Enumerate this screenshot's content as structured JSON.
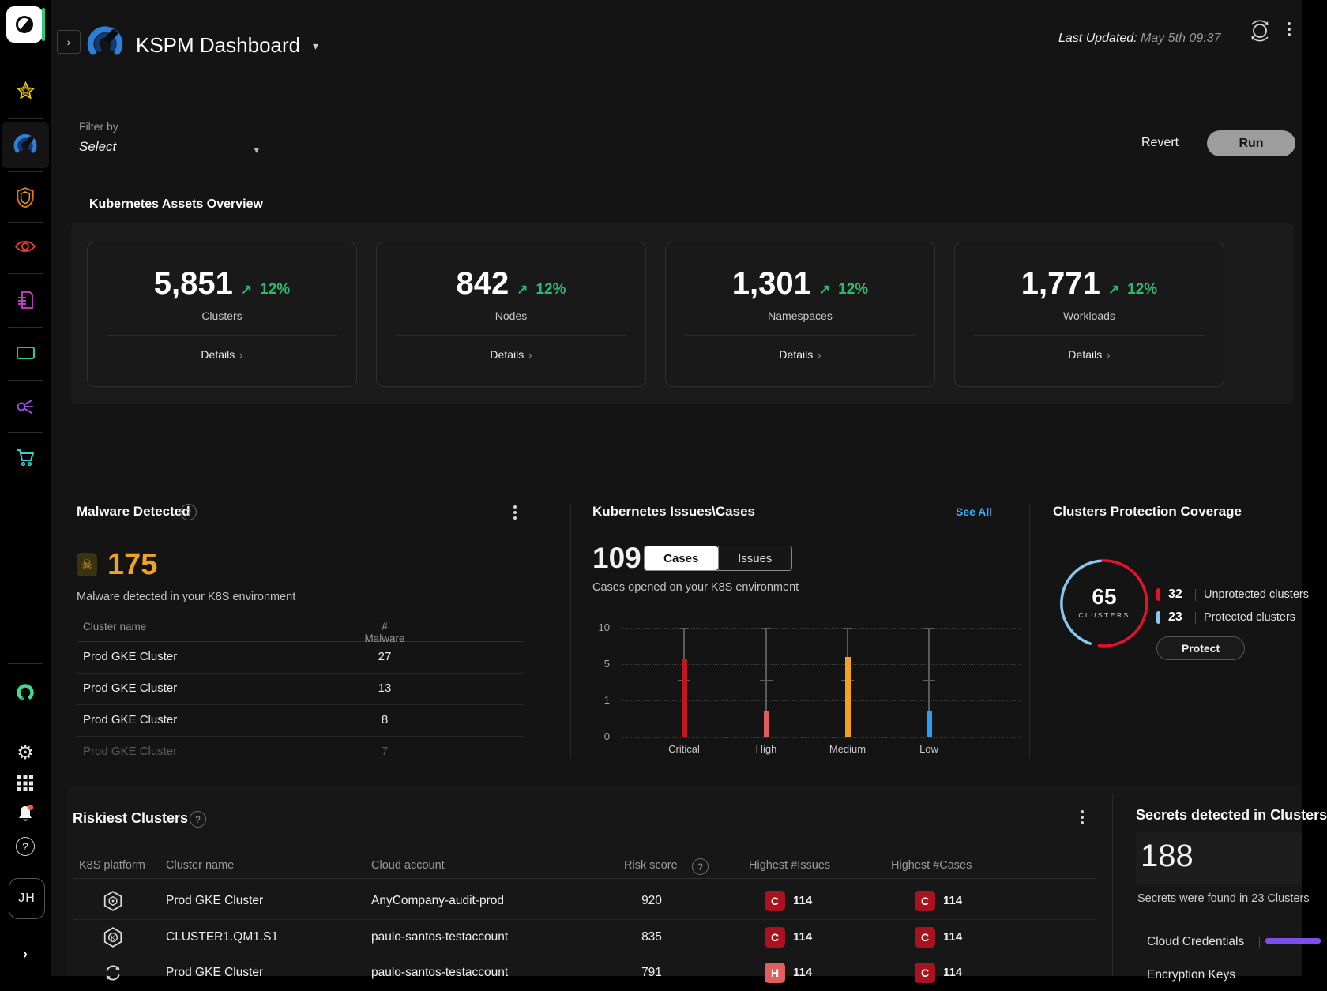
{
  "header": {
    "title": "KSPM Dashboard",
    "last_updated_label": "Last Updated:",
    "last_updated_value": "May 5th 09:37"
  },
  "sidebar": {
    "avatar_initials": "JH",
    "icons": [
      "logo",
      "favorites-star",
      "kspm-gauge",
      "shield",
      "eye",
      "report-document",
      "monitor",
      "share-network",
      "cart",
      "ring-logo",
      "settings-gear",
      "apps-grid",
      "notifications-bell",
      "help"
    ]
  },
  "filter": {
    "label": "Filter by",
    "value": "Select",
    "revert_label": "Revert",
    "run_label": "Run"
  },
  "assets": {
    "title": "Kubernetes Assets Overview",
    "details_label": "Details",
    "cards": [
      {
        "value": "5,851",
        "delta": "12%",
        "label": "Clusters"
      },
      {
        "value": "842",
        "delta": "12%",
        "label": "Nodes"
      },
      {
        "value": "1,301",
        "delta": "12%",
        "label": "Namespaces"
      },
      {
        "value": "1,771",
        "delta": "12%",
        "label": "Workloads"
      }
    ],
    "delta_color": "#2eb86f"
  },
  "malware": {
    "title": "Malware Detected",
    "count": "175",
    "count_color": "#f0a226",
    "subtitle": "Malware detected in your K8S environment",
    "columns": [
      "Cluster name",
      "# Malware"
    ],
    "rows": [
      {
        "name": "Prod GKE Cluster",
        "count": "27"
      },
      {
        "name": "Prod GKE Cluster",
        "count": "13"
      },
      {
        "name": "Prod GKE Cluster",
        "count": "8"
      },
      {
        "name": "Prod GKE Cluster",
        "count": "7"
      }
    ]
  },
  "issues_cases": {
    "title": "Kubernetes Issues\\Cases",
    "see_all": "See All",
    "count": "109",
    "tabs": [
      "Cases",
      "Issues"
    ],
    "active_tab": "Cases",
    "subtitle": "Cases opened on your K8S environment",
    "chart_data": {
      "type": "bar",
      "categories": [
        "Critical",
        "High",
        "Medium",
        "Low"
      ],
      "values": [
        5.8,
        0.7,
        6.0,
        0.7
      ],
      "colors": [
        "#c01722",
        "#e25d5d",
        "#f2a124",
        "#2d9cf4"
      ],
      "yticks": [
        "10",
        "5",
        "1",
        "0"
      ],
      "ylim": [
        0,
        10
      ],
      "grid": "dotted"
    }
  },
  "protection": {
    "title": "Clusters Protection Coverage",
    "total": "65",
    "total_label": "CLUSTERS",
    "button_label": "Protect",
    "legend": [
      {
        "value": "32",
        "label": "Unprotected clusters",
        "color": "#e8112d"
      },
      {
        "value": "23",
        "label": "Protected clusters",
        "color": "#85c8f0"
      }
    ],
    "chart_data": {
      "type": "donut",
      "segments": [
        {
          "label": "Unprotected clusters",
          "value": 32,
          "color": "#e8112d"
        },
        {
          "label": "Protected clusters",
          "value": 23,
          "color": "#85c8f0"
        }
      ]
    }
  },
  "riskiest": {
    "title": "Riskiest Clusters",
    "columns": [
      "K8S platform",
      "Cluster name",
      "Cloud account",
      "Risk score",
      "Highest #Issues",
      "Highest #Cases"
    ],
    "sev_colors": {
      "C": "#a9121f",
      "H": "#e05f5f"
    },
    "rows": [
      {
        "platform": "gke-hexagon",
        "name": "Prod GKE Cluster",
        "account": "AnyCompany-audit-prod",
        "score": "920",
        "issues_sev": "C",
        "issues_count": "114",
        "cases_sev": "C",
        "cases_count": "114"
      },
      {
        "platform": "kubernetes-hexagon",
        "name": "CLUSTER1.QM1.S1",
        "account": "paulo-santos-testaccount",
        "score": "835",
        "issues_sev": "C",
        "issues_count": "114",
        "cases_sev": "C",
        "cases_count": "114"
      },
      {
        "platform": "circular-arrows",
        "name": "Prod GKE Cluster",
        "account": "paulo-santos-testaccount",
        "score": "791",
        "issues_sev": "H",
        "issues_count": "114",
        "cases_sev": "C",
        "cases_count": "114"
      }
    ]
  },
  "secrets": {
    "title": "Secrets detected in Clusters",
    "count": "188",
    "subtitle": "Secrets were found in 23 Clusters",
    "bar_color": "#7c4fe8",
    "items": [
      {
        "label": "Cloud Credentials"
      },
      {
        "label": "Encryption Keys"
      }
    ]
  }
}
